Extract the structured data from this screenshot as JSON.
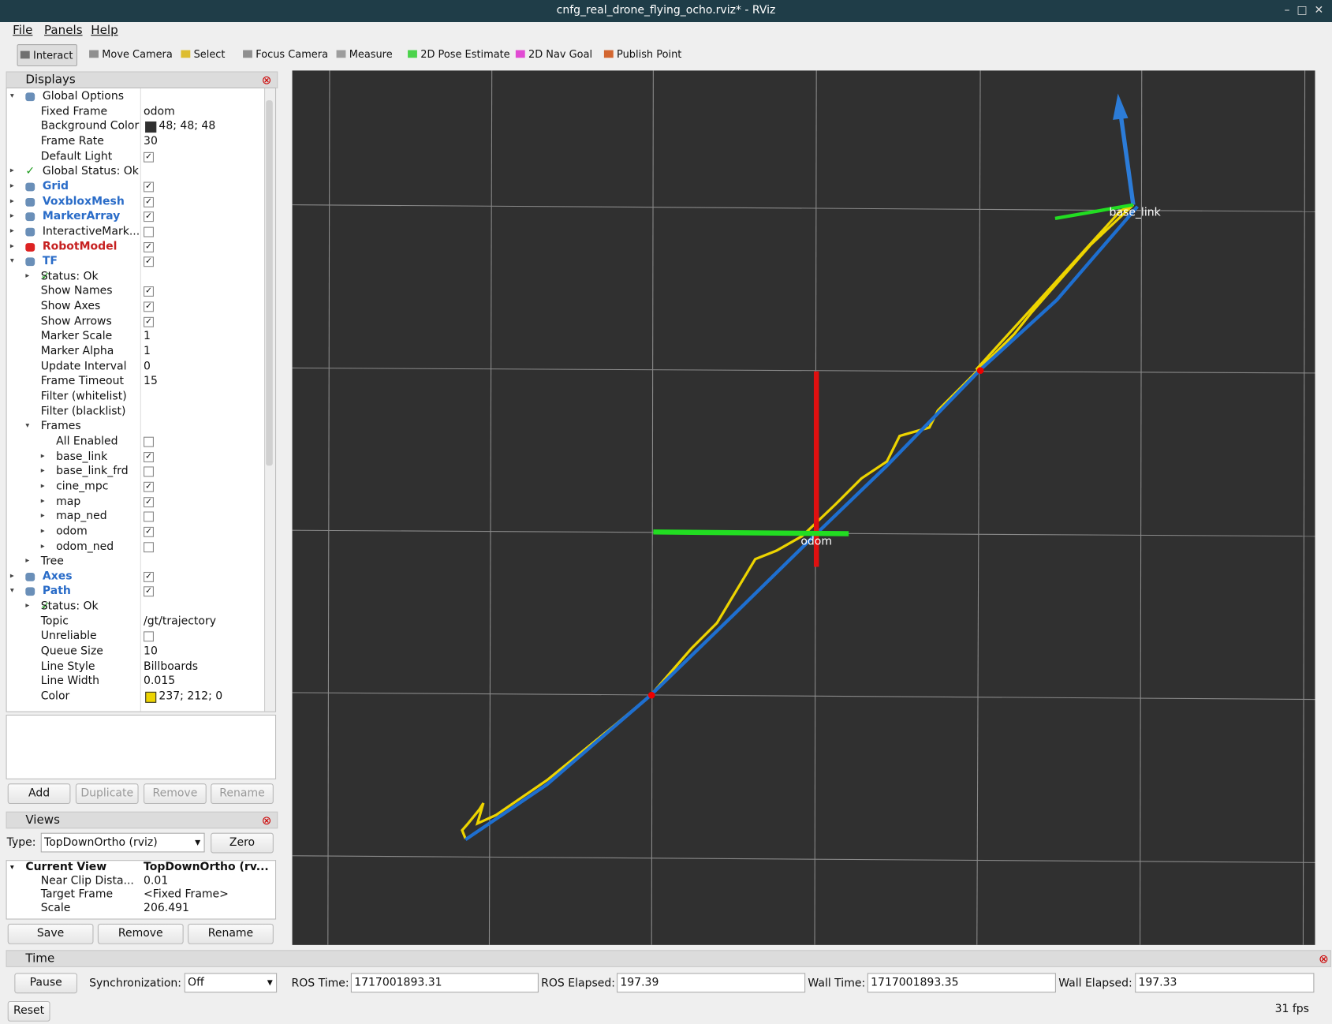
{
  "window": {
    "title": "cnfg_real_drone_flying_ocho.rviz* - RViz"
  },
  "menu": [
    "File",
    "Panels",
    "Help"
  ],
  "toolbar": [
    "Interact",
    "Move Camera",
    "Select",
    "Focus Camera",
    "Measure",
    "2D Pose Estimate",
    "2D Nav Goal",
    "Publish Point"
  ],
  "displays": {
    "title": "Displays",
    "rows": [
      {
        "label": "Global Options",
        "level": 0,
        "expander": "open"
      },
      {
        "label": "Fixed Frame",
        "value": "odom",
        "level": 1
      },
      {
        "label": "Background Color",
        "value": "48; 48; 48",
        "swatch": "#303030",
        "level": 1
      },
      {
        "label": "Frame Rate",
        "value": "30",
        "level": 1
      },
      {
        "label": "Default Light",
        "checked": true,
        "level": 1
      },
      {
        "label": "Global Status: Ok",
        "level": 0,
        "expander": "closed",
        "status": "ok"
      },
      {
        "label": "Grid",
        "checked": true,
        "level": 0,
        "expander": "closed",
        "style": "blue"
      },
      {
        "label": "VoxbloxMesh",
        "checked": true,
        "level": 0,
        "expander": "closed",
        "style": "blue"
      },
      {
        "label": "MarkerArray",
        "checked": true,
        "level": 0,
        "expander": "closed",
        "style": "blue"
      },
      {
        "label": "InteractiveMark...",
        "checked": false,
        "level": 0,
        "expander": "closed"
      },
      {
        "label": "RobotModel",
        "checked": true,
        "level": 0,
        "expander": "closed",
        "style": "red"
      },
      {
        "label": "TF",
        "checked": true,
        "level": 0,
        "expander": "open",
        "style": "blue"
      },
      {
        "label": "Status: Ok",
        "level": 1,
        "expander": "closed",
        "status": "ok"
      },
      {
        "label": "Show Names",
        "checked": true,
        "level": 1
      },
      {
        "label": "Show Axes",
        "checked": true,
        "level": 1
      },
      {
        "label": "Show Arrows",
        "checked": true,
        "level": 1
      },
      {
        "label": "Marker Scale",
        "value": "1",
        "level": 1
      },
      {
        "label": "Marker Alpha",
        "value": "1",
        "level": 1
      },
      {
        "label": "Update Interval",
        "value": "0",
        "level": 1
      },
      {
        "label": "Frame Timeout",
        "value": "15",
        "level": 1
      },
      {
        "label": "Filter (whitelist)",
        "level": 1
      },
      {
        "label": "Filter (blacklist)",
        "level": 1
      },
      {
        "label": "Frames",
        "level": 1,
        "expander": "open"
      },
      {
        "label": "All Enabled",
        "checked": false,
        "level": 2
      },
      {
        "label": "base_link",
        "checked": true,
        "level": 2,
        "expander": "closed"
      },
      {
        "label": "base_link_frd",
        "checked": false,
        "level": 2,
        "expander": "closed"
      },
      {
        "label": "cine_mpc",
        "checked": true,
        "level": 2,
        "expander": "closed"
      },
      {
        "label": "map",
        "checked": true,
        "level": 2,
        "expander": "closed"
      },
      {
        "label": "map_ned",
        "checked": false,
        "level": 2,
        "expander": "closed"
      },
      {
        "label": "odom",
        "checked": true,
        "level": 2,
        "expander": "closed"
      },
      {
        "label": "odom_ned",
        "checked": false,
        "level": 2,
        "expander": "closed"
      },
      {
        "label": "Tree",
        "level": 1,
        "expander": "closed"
      },
      {
        "label": "Axes",
        "checked": true,
        "level": 0,
        "expander": "closed",
        "style": "blue"
      },
      {
        "label": "Path",
        "checked": true,
        "level": 0,
        "expander": "open",
        "style": "blue"
      },
      {
        "label": "Status: Ok",
        "level": 1,
        "expander": "closed",
        "status": "ok"
      },
      {
        "label": "Topic",
        "value": "/gt/trajectory",
        "level": 1
      },
      {
        "label": "Unreliable",
        "checked": false,
        "level": 1
      },
      {
        "label": "Queue Size",
        "value": "10",
        "level": 1
      },
      {
        "label": "Line Style",
        "value": "Billboards",
        "level": 1
      },
      {
        "label": "Line Width",
        "value": "0.015",
        "level": 1
      },
      {
        "label": "Color",
        "value": "237; 212; 0",
        "swatch": "#edd400",
        "level": 1
      }
    ],
    "buttons": [
      "Add",
      "Duplicate",
      "Remove",
      "Rename"
    ]
  },
  "views": {
    "title": "Views",
    "type_label": "Type:",
    "type_value": "TopDownOrtho (rviz)",
    "zero": "Zero",
    "rows": [
      {
        "label": "Current View",
        "value": "TopDownOrtho (rv...",
        "level": 0
      },
      {
        "label": "Near Clip Dista...",
        "value": "0.01",
        "level": 1
      },
      {
        "label": "Target Frame",
        "value": "<Fixed Frame>",
        "level": 1
      },
      {
        "label": "Scale",
        "value": "206.491",
        "level": 1
      }
    ],
    "buttons": [
      "Save",
      "Remove",
      "Rename"
    ]
  },
  "time": {
    "title": "Time",
    "pause": "Pause",
    "sync_label": "Synchronization:",
    "sync_value": "Off",
    "fields": [
      {
        "label": "ROS Time:",
        "value": "1717001893.31"
      },
      {
        "label": "ROS Elapsed:",
        "value": "197.39"
      },
      {
        "label": "Wall Time:",
        "value": "1717001893.35"
      },
      {
        "label": "Wall Elapsed:",
        "value": "197.33"
      }
    ],
    "reset": "Reset",
    "fps": "31 fps"
  },
  "viewport": {
    "frames": [
      "odom",
      "base_link"
    ]
  }
}
